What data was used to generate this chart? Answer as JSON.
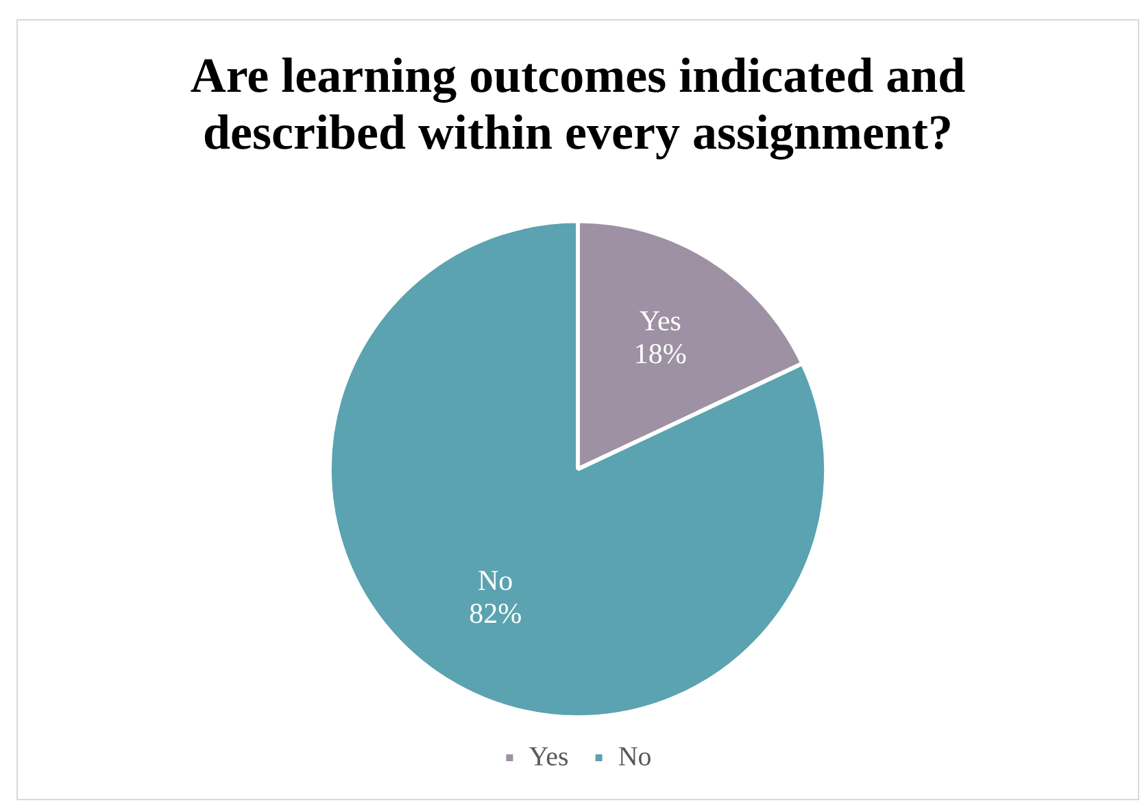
{
  "chart_data": {
    "type": "pie",
    "title": "Are learning outcomes indicated and described within every assignment?",
    "categories": [
      "Yes",
      "No"
    ],
    "values": [
      18,
      82
    ],
    "value_labels": [
      "18%",
      "82%"
    ],
    "colors": [
      "#9e91a3",
      "#5ba3b0"
    ],
    "legend": "bottom"
  }
}
